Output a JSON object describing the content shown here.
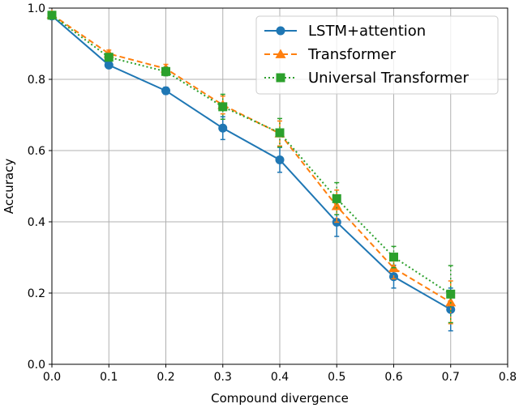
{
  "chart_data": {
    "type": "line",
    "xlabel": "Compound divergence",
    "ylabel": "Accuracy",
    "xlim": [
      0.0,
      0.8
    ],
    "ylim": [
      0.0,
      1.0
    ],
    "xticks": [
      "0.0",
      "0.1",
      "0.2",
      "0.3",
      "0.4",
      "0.5",
      "0.6",
      "0.7",
      "0.8"
    ],
    "yticks": [
      "0.0",
      "0.2",
      "0.4",
      "0.6",
      "0.8",
      "1.0"
    ],
    "grid": true,
    "legend_position": "top-right",
    "x": [
      0.0,
      0.1,
      0.2,
      0.3,
      0.4,
      0.5,
      0.6,
      0.7
    ],
    "series": [
      {
        "name": "LSTM+attention",
        "color": "#1f77b4",
        "line_style": "solid",
        "marker": "circle",
        "values": [
          0.978,
          0.84,
          0.768,
          0.663,
          0.574,
          0.399,
          0.246,
          0.154
        ],
        "error": [
          0.008,
          0.008,
          0.01,
          0.032,
          0.035,
          0.04,
          0.032,
          0.06
        ]
      },
      {
        "name": "Transformer",
        "color": "#ff7f0e",
        "line_style": "dashed",
        "marker": "triangle",
        "values": [
          0.982,
          0.872,
          0.83,
          0.728,
          0.648,
          0.444,
          0.27,
          0.174
        ],
        "error": [
          0.008,
          0.01,
          0.012,
          0.025,
          0.035,
          0.045,
          0.03,
          0.06
        ]
      },
      {
        "name": "Universal Transformer",
        "color": "#2ca02c",
        "line_style": "dotted",
        "marker": "square",
        "values": [
          0.98,
          0.862,
          0.822,
          0.723,
          0.65,
          0.465,
          0.301,
          0.197
        ],
        "error": [
          0.008,
          0.01,
          0.012,
          0.035,
          0.04,
          0.045,
          0.03,
          0.08
        ]
      }
    ]
  }
}
